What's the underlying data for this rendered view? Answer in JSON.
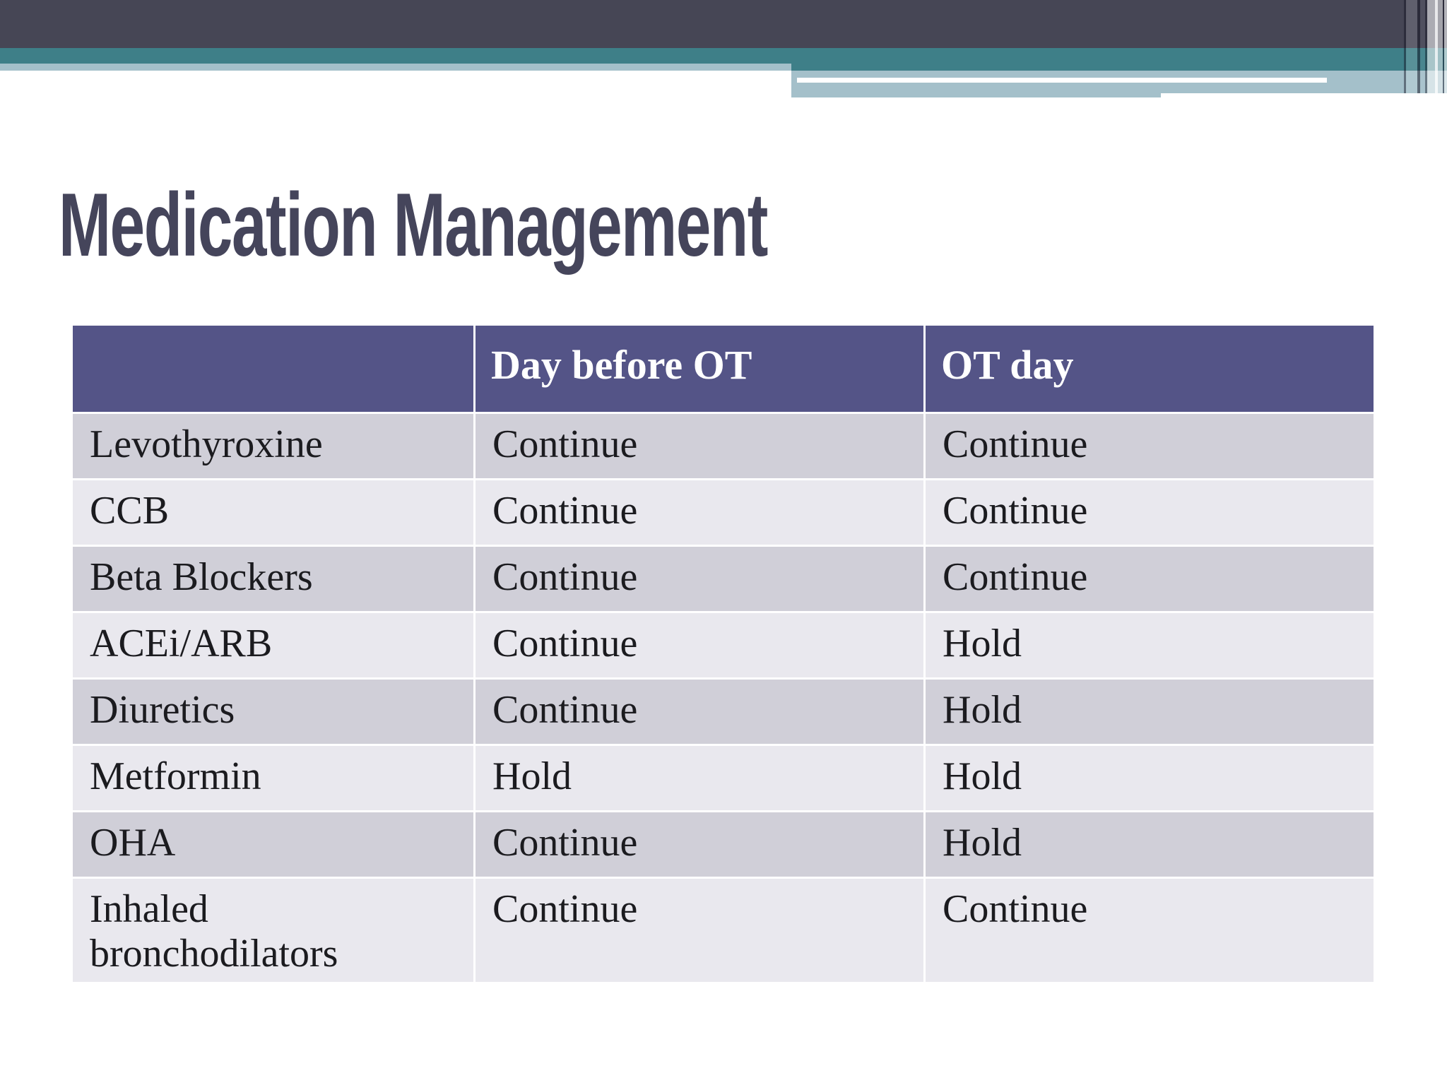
{
  "slide_title": "Medication Management",
  "table": {
    "headers": [
      "",
      "Day before OT",
      "OT day"
    ],
    "rows": [
      [
        "Levothyroxine",
        "Continue",
        "Continue"
      ],
      [
        "CCB",
        "Continue",
        "Continue"
      ],
      [
        "Beta Blockers",
        "Continue",
        "Continue"
      ],
      [
        "ACEi/ARB",
        "Continue",
        "Hold"
      ],
      [
        "Diuretics",
        "Continue",
        "Hold"
      ],
      [
        "Metformin",
        "Hold",
        "Hold"
      ],
      [
        "OHA",
        "Continue",
        "Hold"
      ],
      [
        "Inhaled bronchodilators",
        "Continue",
        "Continue"
      ]
    ]
  },
  "theme": {
    "dark_bar": "#464655",
    "teal_bar": "#3e7f88",
    "light_blue_accent": "#a4c0ca",
    "header_purple": "#545487",
    "row_band_dark": "#d0cfd8",
    "row_band_light": "#e9e8ee",
    "title_color": "#45455b",
    "body_text": "#1b1b1f"
  }
}
